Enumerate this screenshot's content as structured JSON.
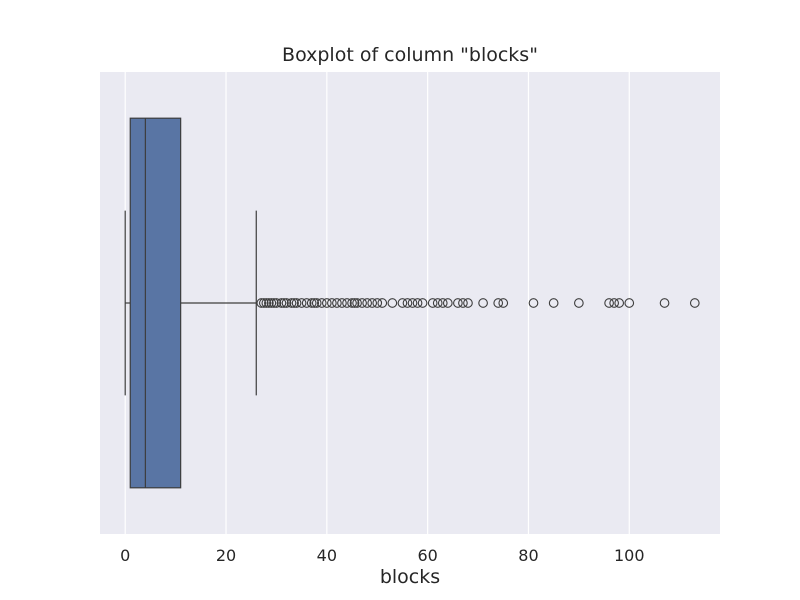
{
  "chart_data": {
    "type": "box",
    "title": "Boxplot of column \"blocks\"",
    "xlabel": "blocks",
    "ylabel": "",
    "orientation": "horizontal",
    "xlim": [
      -5,
      118
    ],
    "xticks": [
      0,
      20,
      40,
      60,
      80,
      100
    ],
    "grid": true,
    "colors": {
      "background": "#eaeaf2",
      "grid": "#ffffff",
      "box": "#5975a4",
      "line": "#3d3d3d"
    },
    "box": {
      "whisker_low": 0,
      "q1": 1,
      "median": 4,
      "q3": 11,
      "whisker_high": 26
    },
    "outliers": [
      27,
      27.5,
      28,
      28.5,
      29,
      29.5,
      30,
      31,
      31.5,
      32,
      33,
      33.5,
      34,
      35,
      36,
      37,
      37.5,
      38,
      39,
      40,
      41,
      42,
      43,
      44,
      45,
      45.5,
      46,
      47,
      48,
      49,
      50,
      51,
      53,
      55,
      56,
      57,
      58,
      59,
      61,
      62,
      63,
      64,
      66,
      67,
      68,
      71,
      74,
      75,
      81,
      85,
      90,
      96,
      97,
      98,
      100,
      107,
      113
    ]
  }
}
